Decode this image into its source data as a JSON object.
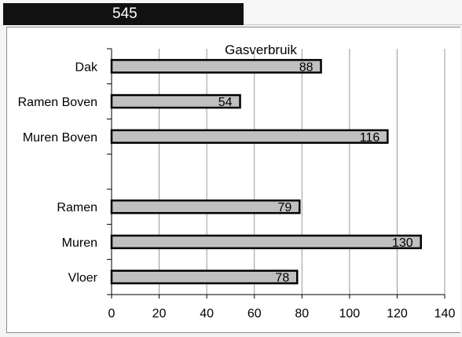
{
  "summary": {
    "total_value": "545"
  },
  "chart_data": {
    "type": "bar",
    "orientation": "horizontal",
    "title": "Gasverbruik",
    "categories": [
      "Dak",
      "Ramen Boven",
      "Muren Boven",
      "",
      "Ramen",
      "Muren",
      "Vloer"
    ],
    "values": [
      88,
      54,
      116,
      null,
      79,
      130,
      78
    ],
    "data_labels": [
      "88",
      "54",
      "116",
      "",
      "79",
      "130",
      "78"
    ],
    "xlim": [
      0,
      140
    ],
    "x_ticks": [
      "0",
      "20",
      "40",
      "60",
      "80",
      "100",
      "120",
      "140"
    ],
    "grid": "vertical",
    "legend": "none",
    "colors": {
      "bar_fill": "#c0c0c0",
      "bar_border": "#000000",
      "grid": "#999999"
    }
  }
}
